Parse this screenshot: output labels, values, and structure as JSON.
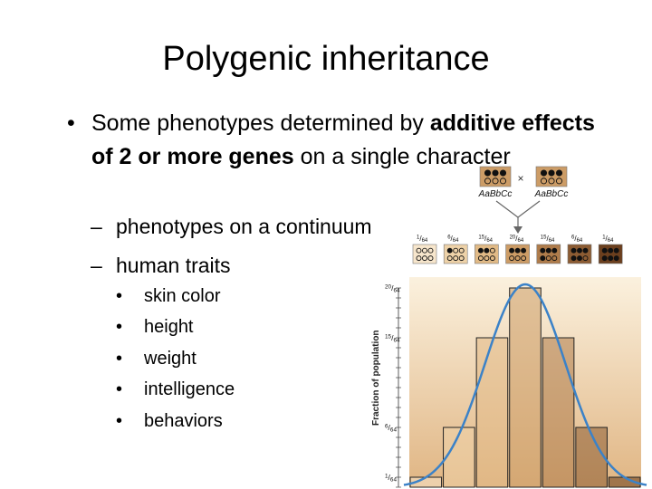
{
  "slide": {
    "title": "Polygenic inheritance",
    "bullet_symbol": "•",
    "dash_symbol": "–",
    "main_bullet": {
      "text_1": "Some phenotypes determined by ",
      "text_bold": "additive effects of 2 or more genes",
      "text_2": " on a single character"
    },
    "sub_bullets": [
      "phenotypes on a continuum",
      "human traits"
    ],
    "traits": [
      "skin color",
      "height",
      "weight",
      "intelligence",
      "behaviors"
    ]
  },
  "figure": {
    "parents": [
      "AaBbCc",
      "AaBbCc"
    ],
    "cross_symbol": "×",
    "y_axis_label": "Fraction of population",
    "colors": {
      "bars": [
        "#f7e6cc",
        "#eed2a8",
        "#e1ba86",
        "#cc9c66",
        "#af7c4b",
        "#8c5c33",
        "#6b3f1e"
      ],
      "curve": "#3b82c8",
      "background_top": "#fbf1de",
      "background_bottom": "#e0b583",
      "arrow": "#666666"
    }
  },
  "chart_data": {
    "type": "bar",
    "title": "",
    "xlabel": "",
    "ylabel": "Fraction of population",
    "categories": [
      "0 dominant",
      "1 dominant",
      "2 dominant",
      "3 dominant",
      "4 dominant",
      "5 dominant",
      "6 dominant"
    ],
    "numerators": [
      1,
      6,
      15,
      20,
      15,
      6,
      1
    ],
    "denominator": 64,
    "values": [
      0.015625,
      0.09375,
      0.234375,
      0.3125,
      0.234375,
      0.09375,
      0.015625
    ],
    "y_tick_labels": [
      "1/64",
      "6/64",
      "15/64",
      "20/64"
    ],
    "ylim": [
      0,
      0.3125
    ],
    "overlay": "normal curve",
    "grid": false
  }
}
